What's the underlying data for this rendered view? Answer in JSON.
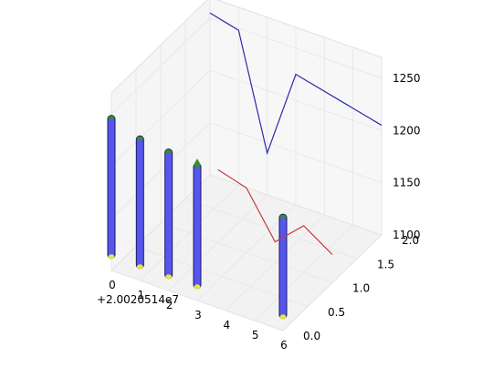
{
  "chart_data": {
    "type": "3d-line-bar",
    "title": "",
    "x_ticks": [
      "0",
      "1",
      "2",
      "3",
      "4",
      "5",
      "6"
    ],
    "x_offset_label": "+2.0020514e7",
    "y_ticks": [
      "0.0",
      "0.5",
      "1.0",
      "1.5",
      "2.0"
    ],
    "z_ticks": [
      "1100",
      "1150",
      "1200",
      "1250"
    ],
    "xlim": [
      0,
      6
    ],
    "ylim": [
      0,
      2
    ],
    "zlim": [
      1100,
      1270
    ],
    "grid": true,
    "series": [
      {
        "kind": "line",
        "color": "#2b2ba8",
        "y": 2.0,
        "x": [
          0,
          1,
          2,
          3,
          6
        ],
        "z": [
          1255,
          1248,
          1140,
          1225,
          1205
        ]
      },
      {
        "kind": "line",
        "color": "#c43b3b",
        "y": 1.0,
        "x": [
          2,
          3,
          4,
          5,
          6
        ],
        "z": [
          1170,
          1162,
          1120,
          1145,
          1127
        ]
      }
    ],
    "bars": [
      {
        "x": 0,
        "z_low": 1115,
        "z_high": 1245
      },
      {
        "x": 1,
        "z_low": 1115,
        "z_high": 1235
      },
      {
        "x": 2,
        "z_low": 1115,
        "z_high": 1232
      },
      {
        "x": 3,
        "z_low": 1115,
        "z_high": 1228
      },
      {
        "x": 6,
        "z_low": 1115,
        "z_high": 1208
      }
    ],
    "bar_color": "#5656ee",
    "marker_colors": {
      "high": "#3a8a3a",
      "low": "#e5e540"
    }
  }
}
